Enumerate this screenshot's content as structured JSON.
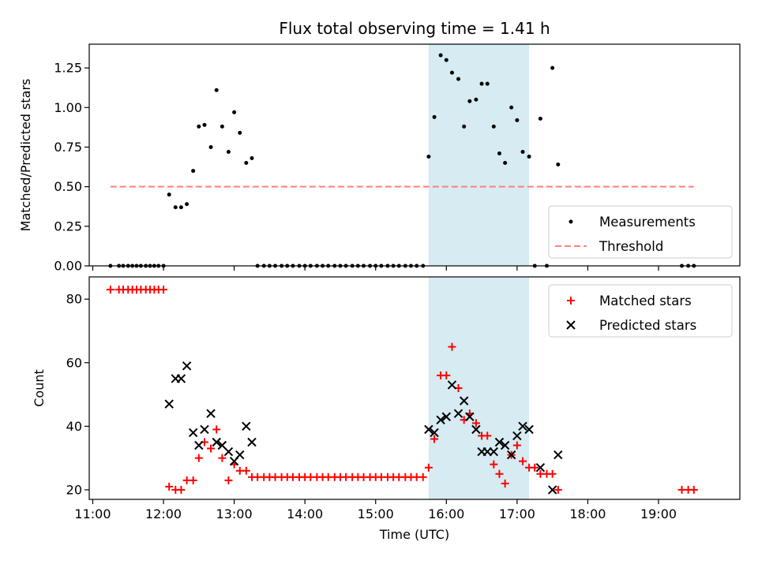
{
  "chart_data": [
    {
      "type": "scatter",
      "title": "Flux total observing time = 1.41 h",
      "xlabel": "",
      "ylabel": "Matched/Predicted stars",
      "xlim": [
        10.95,
        20.15
      ],
      "ylim": [
        0,
        1.4
      ],
      "yticks": [
        0.0,
        0.25,
        0.5,
        0.75,
        1.0,
        1.25
      ],
      "ytick_labels": [
        "0.00",
        "0.25",
        "0.50",
        "0.75",
        "1.00",
        "1.25"
      ],
      "highlight_span": [
        15.75,
        17.17
      ],
      "highlight_color": "#add8e6",
      "legend_position": "lower-right",
      "series": [
        {
          "name": "Measurements",
          "marker": "dot",
          "color": "#000000",
          "points": [
            [
              11.25,
              0
            ],
            [
              11.37,
              0
            ],
            [
              11.43,
              0
            ],
            [
              11.5,
              0
            ],
            [
              11.56,
              0
            ],
            [
              11.62,
              0
            ],
            [
              11.68,
              0
            ],
            [
              11.75,
              0
            ],
            [
              11.81,
              0
            ],
            [
              11.87,
              0
            ],
            [
              11.93,
              0
            ],
            [
              12.0,
              0
            ],
            [
              12.08,
              0.45
            ],
            [
              12.17,
              0.37
            ],
            [
              12.25,
              0.37
            ],
            [
              12.33,
              0.39
            ],
            [
              12.42,
              0.6
            ],
            [
              12.5,
              0.88
            ],
            [
              12.58,
              0.89
            ],
            [
              12.67,
              0.75
            ],
            [
              12.75,
              1.11
            ],
            [
              12.83,
              0.88
            ],
            [
              12.92,
              0.72
            ],
            [
              13.0,
              0.97
            ],
            [
              13.08,
              0.84
            ],
            [
              13.17,
              0.65
            ],
            [
              13.25,
              0.68
            ],
            [
              13.33,
              0
            ],
            [
              13.42,
              0
            ],
            [
              13.5,
              0
            ],
            [
              13.58,
              0
            ],
            [
              13.67,
              0
            ],
            [
              13.75,
              0
            ],
            [
              13.83,
              0
            ],
            [
              13.92,
              0
            ],
            [
              14.0,
              0
            ],
            [
              14.08,
              0
            ],
            [
              14.17,
              0
            ],
            [
              14.25,
              0
            ],
            [
              14.33,
              0
            ],
            [
              14.42,
              0
            ],
            [
              14.5,
              0
            ],
            [
              14.58,
              0
            ],
            [
              14.67,
              0
            ],
            [
              14.75,
              0
            ],
            [
              14.83,
              0
            ],
            [
              14.92,
              0
            ],
            [
              15.0,
              0
            ],
            [
              15.08,
              0
            ],
            [
              15.17,
              0
            ],
            [
              15.25,
              0
            ],
            [
              15.33,
              0
            ],
            [
              15.42,
              0
            ],
            [
              15.5,
              0
            ],
            [
              15.58,
              0
            ],
            [
              15.67,
              0
            ],
            [
              15.75,
              0.69
            ],
            [
              15.83,
              0.94
            ],
            [
              15.92,
              1.33
            ],
            [
              16.0,
              1.3
            ],
            [
              16.08,
              1.22
            ],
            [
              16.17,
              1.18
            ],
            [
              16.25,
              0.88
            ],
            [
              16.33,
              1.04
            ],
            [
              16.42,
              1.05
            ],
            [
              16.5,
              1.15
            ],
            [
              16.58,
              1.15
            ],
            [
              16.67,
              0.88
            ],
            [
              16.75,
              0.71
            ],
            [
              16.83,
              0.65
            ],
            [
              16.92,
              1.0
            ],
            [
              17.0,
              0.92
            ],
            [
              17.08,
              0.72
            ],
            [
              17.17,
              0.69
            ],
            [
              17.25,
              0
            ],
            [
              17.33,
              0.93
            ],
            [
              17.42,
              0
            ],
            [
              17.5,
              1.25
            ],
            [
              17.58,
              0.64
            ],
            [
              19.33,
              0
            ],
            [
              19.42,
              0
            ],
            [
              19.5,
              0
            ]
          ]
        },
        {
          "name": "Threshold",
          "marker": "dashed-line",
          "color": "#ff7f7f",
          "points": [
            [
              11.25,
              0.5
            ],
            [
              19.5,
              0.5
            ]
          ]
        }
      ]
    },
    {
      "type": "scatter",
      "title": "",
      "xlabel": "Time (UTC)",
      "ylabel": "Count",
      "xlim": [
        10.95,
        20.15
      ],
      "ylim": [
        17,
        87
      ],
      "yticks": [
        20,
        40,
        60,
        80
      ],
      "ytick_labels": [
        "20",
        "40",
        "60",
        "80"
      ],
      "xticks": [
        11,
        12,
        13,
        14,
        15,
        16,
        17,
        18,
        19
      ],
      "xtick_labels": [
        "11:00",
        "12:00",
        "13:00",
        "14:00",
        "15:00",
        "16:00",
        "17:00",
        "18:00",
        "19:00"
      ],
      "highlight_span": [
        15.75,
        17.17
      ],
      "highlight_color": "#add8e6",
      "legend_position": "upper-right",
      "series": [
        {
          "name": "Matched stars",
          "marker": "plus",
          "color": "#ff0000",
          "points": [
            [
              11.25,
              83
            ],
            [
              11.37,
              83
            ],
            [
              11.43,
              83
            ],
            [
              11.5,
              83
            ],
            [
              11.56,
              83
            ],
            [
              11.62,
              83
            ],
            [
              11.68,
              83
            ],
            [
              11.75,
              83
            ],
            [
              11.81,
              83
            ],
            [
              11.87,
              83
            ],
            [
              11.93,
              83
            ],
            [
              12.0,
              83
            ],
            [
              12.08,
              21
            ],
            [
              12.17,
              20
            ],
            [
              12.25,
              20
            ],
            [
              12.33,
              23
            ],
            [
              12.42,
              23
            ],
            [
              12.5,
              30
            ],
            [
              12.58,
              35
            ],
            [
              12.67,
              33
            ],
            [
              12.75,
              39
            ],
            [
              12.83,
              30
            ],
            [
              12.92,
              23
            ],
            [
              13.0,
              28
            ],
            [
              13.08,
              26
            ],
            [
              13.17,
              26
            ],
            [
              13.25,
              24
            ],
            [
              13.33,
              24
            ],
            [
              13.42,
              24
            ],
            [
              13.5,
              24
            ],
            [
              13.58,
              24
            ],
            [
              13.67,
              24
            ],
            [
              13.75,
              24
            ],
            [
              13.83,
              24
            ],
            [
              13.92,
              24
            ],
            [
              14.0,
              24
            ],
            [
              14.08,
              24
            ],
            [
              14.17,
              24
            ],
            [
              14.25,
              24
            ],
            [
              14.33,
              24
            ],
            [
              14.42,
              24
            ],
            [
              14.5,
              24
            ],
            [
              14.58,
              24
            ],
            [
              14.67,
              24
            ],
            [
              14.75,
              24
            ],
            [
              14.83,
              24
            ],
            [
              14.92,
              24
            ],
            [
              15.0,
              24
            ],
            [
              15.08,
              24
            ],
            [
              15.17,
              24
            ],
            [
              15.25,
              24
            ],
            [
              15.33,
              24
            ],
            [
              15.42,
              24
            ],
            [
              15.5,
              24
            ],
            [
              15.58,
              24
            ],
            [
              15.67,
              24
            ],
            [
              15.75,
              27
            ],
            [
              15.83,
              36
            ],
            [
              15.92,
              56
            ],
            [
              16.0,
              56
            ],
            [
              16.08,
              65
            ],
            [
              16.17,
              52
            ],
            [
              16.25,
              42
            ],
            [
              16.33,
              44
            ],
            [
              16.42,
              41
            ],
            [
              16.5,
              37
            ],
            [
              16.58,
              37
            ],
            [
              16.67,
              28
            ],
            [
              16.75,
              25
            ],
            [
              16.83,
              22
            ],
            [
              16.92,
              31
            ],
            [
              17.0,
              34
            ],
            [
              17.08,
              29
            ],
            [
              17.17,
              27
            ],
            [
              17.25,
              27
            ],
            [
              17.33,
              25
            ],
            [
              17.42,
              25
            ],
            [
              17.5,
              25
            ],
            [
              17.58,
              20
            ],
            [
              19.33,
              20
            ],
            [
              19.42,
              20
            ],
            [
              19.5,
              20
            ]
          ]
        },
        {
          "name": "Predicted stars",
          "marker": "x",
          "color": "#000000",
          "points": [
            [
              12.08,
              47
            ],
            [
              12.17,
              55
            ],
            [
              12.25,
              55
            ],
            [
              12.33,
              59
            ],
            [
              12.42,
              38
            ],
            [
              12.5,
              34
            ],
            [
              12.58,
              39
            ],
            [
              12.67,
              44
            ],
            [
              12.75,
              35
            ],
            [
              12.83,
              34
            ],
            [
              12.92,
              32
            ],
            [
              13.0,
              29
            ],
            [
              13.08,
              31
            ],
            [
              13.17,
              40
            ],
            [
              13.25,
              35
            ],
            [
              15.75,
              39
            ],
            [
              15.83,
              38
            ],
            [
              15.92,
              42
            ],
            [
              16.0,
              43
            ],
            [
              16.08,
              53
            ],
            [
              16.17,
              44
            ],
            [
              16.25,
              48
            ],
            [
              16.33,
              43
            ],
            [
              16.42,
              39
            ],
            [
              16.5,
              32
            ],
            [
              16.58,
              32
            ],
            [
              16.67,
              32
            ],
            [
              16.75,
              35
            ],
            [
              16.83,
              34
            ],
            [
              16.92,
              31
            ],
            [
              17.0,
              37
            ],
            [
              17.08,
              40
            ],
            [
              17.17,
              39
            ],
            [
              17.33,
              27
            ],
            [
              17.5,
              20
            ],
            [
              17.58,
              31
            ]
          ]
        }
      ]
    }
  ]
}
